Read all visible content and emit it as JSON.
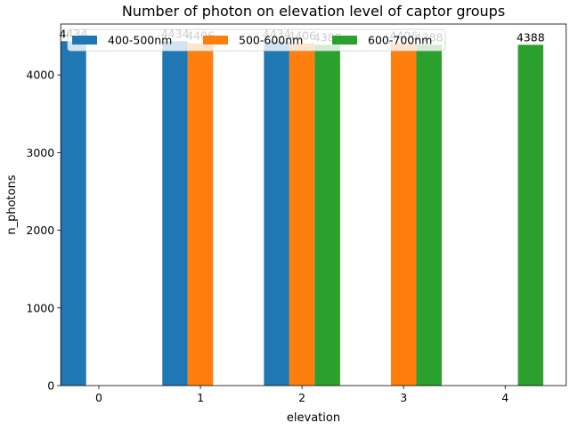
{
  "chart_data": {
    "type": "bar",
    "title": "Number of photon on elevation level of captor groups",
    "xlabel": "elevation",
    "ylabel": "n_photons",
    "ylim": [
      0,
      4655
    ],
    "xlim": [
      -0.375,
      4.6
    ],
    "x_ticks": [
      0,
      1,
      2,
      3,
      4
    ],
    "y_ticks": [
      0,
      1000,
      2000,
      3000,
      4000
    ],
    "bar_width": 0.25,
    "grid": false,
    "legend": {
      "placement": "top-center",
      "columns": 3
    },
    "series": [
      {
        "name": "400-500nm",
        "color": "#1f77b4",
        "points": [
          {
            "x": 0,
            "value": 4434
          },
          {
            "x": 1,
            "value": 4434
          },
          {
            "x": 2,
            "value": 4434
          }
        ]
      },
      {
        "name": "500-600nm",
        "color": "#ff7f0e",
        "points": [
          {
            "x": 1,
            "value": 4406
          },
          {
            "x": 2,
            "value": 4406
          },
          {
            "x": 3,
            "value": 4406
          }
        ]
      },
      {
        "name": "600-700nm",
        "color": "#2ca02c",
        "points": [
          {
            "x": 2,
            "value": 4388
          },
          {
            "x": 3,
            "value": 4388
          },
          {
            "x": 4,
            "value": 4388
          }
        ]
      }
    ]
  }
}
